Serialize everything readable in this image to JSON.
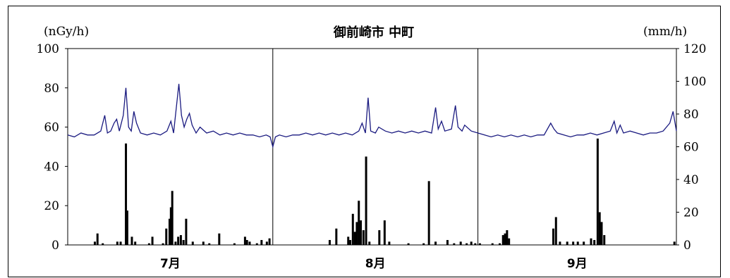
{
  "chart_data": {
    "type": "line+bar",
    "title": "御前崎市 中町",
    "left_axis": {
      "unit_label": "(nGy/h)",
      "ylim": [
        0,
        100
      ],
      "ticks": [
        "100",
        "80",
        "60",
        "40",
        "20",
        "0"
      ]
    },
    "right_axis": {
      "unit_label": "(mm/h)",
      "ylim": [
        0,
        120
      ],
      "ticks": [
        "120",
        "100",
        "80",
        "60",
        "40",
        "20",
        "0"
      ]
    },
    "x_categories": [
      "7月",
      "8月",
      "9月"
    ],
    "x_range_days": [
      0,
      92
    ],
    "month_boundaries_days": [
      31,
      62
    ],
    "series": [
      {
        "type": "line",
        "color": "#1a1a80",
        "axis": "left",
        "points": [
          [
            0,
            56
          ],
          [
            1,
            55
          ],
          [
            2,
            57
          ],
          [
            3,
            56
          ],
          [
            4,
            56
          ],
          [
            5,
            58
          ],
          [
            5.6,
            66
          ],
          [
            6,
            57
          ],
          [
            6.5,
            58
          ],
          [
            7,
            62
          ],
          [
            7.4,
            64
          ],
          [
            7.8,
            58
          ],
          [
            8.4,
            66
          ],
          [
            8.8,
            80
          ],
          [
            9.2,
            60
          ],
          [
            9.6,
            58
          ],
          [
            10,
            68
          ],
          [
            10.4,
            62
          ],
          [
            11,
            57
          ],
          [
            12,
            56
          ],
          [
            13,
            57
          ],
          [
            14,
            56
          ],
          [
            15,
            58
          ],
          [
            15.6,
            63
          ],
          [
            16,
            57
          ],
          [
            16.8,
            82
          ],
          [
            17.2,
            66
          ],
          [
            17.6,
            60
          ],
          [
            18,
            64
          ],
          [
            18.4,
            67
          ],
          [
            18.8,
            61
          ],
          [
            19.4,
            57
          ],
          [
            20,
            60
          ],
          [
            21,
            57
          ],
          [
            22,
            58
          ],
          [
            23,
            56
          ],
          [
            24,
            57
          ],
          [
            25,
            56
          ],
          [
            26,
            57
          ],
          [
            27,
            56
          ],
          [
            28,
            56
          ],
          [
            29,
            55
          ],
          [
            30,
            56
          ],
          [
            30.6,
            55
          ],
          [
            31,
            50
          ],
          [
            31.4,
            55
          ],
          [
            32,
            56
          ],
          [
            33,
            55
          ],
          [
            34,
            56
          ],
          [
            35,
            56
          ],
          [
            36,
            57
          ],
          [
            37,
            56
          ],
          [
            38,
            57
          ],
          [
            39,
            56
          ],
          [
            40,
            57
          ],
          [
            41,
            56
          ],
          [
            42,
            57
          ],
          [
            43,
            56
          ],
          [
            44,
            58
          ],
          [
            44.5,
            62
          ],
          [
            45,
            57
          ],
          [
            45.4,
            75
          ],
          [
            45.8,
            58
          ],
          [
            46.5,
            57
          ],
          [
            47,
            60
          ],
          [
            48,
            58
          ],
          [
            49,
            57
          ],
          [
            50,
            58
          ],
          [
            51,
            57
          ],
          [
            52,
            58
          ],
          [
            53,
            57
          ],
          [
            54,
            58
          ],
          [
            55,
            57
          ],
          [
            55.6,
            70
          ],
          [
            56,
            59
          ],
          [
            56.5,
            63
          ],
          [
            57,
            58
          ],
          [
            58,
            59
          ],
          [
            58.6,
            71
          ],
          [
            59,
            60
          ],
          [
            59.6,
            58
          ],
          [
            60,
            61
          ],
          [
            61,
            58
          ],
          [
            62,
            57
          ],
          [
            63,
            56
          ],
          [
            64,
            55
          ],
          [
            65,
            56
          ],
          [
            66,
            55
          ],
          [
            67,
            56
          ],
          [
            68,
            55
          ],
          [
            69,
            56
          ],
          [
            70,
            55
          ],
          [
            71,
            56
          ],
          [
            72,
            56
          ],
          [
            73,
            62
          ],
          [
            73.5,
            59
          ],
          [
            74,
            57
          ],
          [
            75,
            56
          ],
          [
            76,
            55
          ],
          [
            77,
            56
          ],
          [
            78,
            56
          ],
          [
            79,
            57
          ],
          [
            80,
            56
          ],
          [
            81,
            57
          ],
          [
            82,
            58
          ],
          [
            82.6,
            63
          ],
          [
            83,
            57
          ],
          [
            83.5,
            61
          ],
          [
            84,
            57
          ],
          [
            85,
            58
          ],
          [
            86,
            57
          ],
          [
            87,
            56
          ],
          [
            88,
            57
          ],
          [
            89,
            57
          ],
          [
            90,
            58
          ],
          [
            91,
            62
          ],
          [
            91.5,
            68
          ],
          [
            92,
            58
          ]
        ]
      },
      {
        "type": "bar",
        "color": "#000000",
        "axis": "right",
        "points": [
          [
            4.1,
            2
          ],
          [
            4.5,
            7
          ],
          [
            5.3,
            1
          ],
          [
            7.5,
            2
          ],
          [
            8.0,
            2
          ],
          [
            8.8,
            62
          ],
          [
            9.0,
            21
          ],
          [
            9.7,
            5
          ],
          [
            10.2,
            2
          ],
          [
            12.3,
            1
          ],
          [
            12.8,
            5
          ],
          [
            14.4,
            1
          ],
          [
            14.9,
            10
          ],
          [
            15.4,
            16
          ],
          [
            15.6,
            23
          ],
          [
            15.8,
            33
          ],
          [
            16.3,
            2
          ],
          [
            16.7,
            5
          ],
          [
            17.1,
            6
          ],
          [
            17.5,
            3
          ],
          [
            17.9,
            16
          ],
          [
            18.9,
            2
          ],
          [
            20.5,
            2
          ],
          [
            21.4,
            1
          ],
          [
            22.9,
            7
          ],
          [
            25.2,
            1
          ],
          [
            26.8,
            5
          ],
          [
            27.1,
            3
          ],
          [
            27.5,
            2
          ],
          [
            28.6,
            1
          ],
          [
            29.3,
            3
          ],
          [
            30.1,
            2
          ],
          [
            30.5,
            4
          ],
          [
            39.6,
            3
          ],
          [
            40.6,
            10
          ],
          [
            42.4,
            5
          ],
          [
            42.7,
            3
          ],
          [
            43.1,
            19
          ],
          [
            43.4,
            8
          ],
          [
            43.7,
            14
          ],
          [
            44.0,
            27
          ],
          [
            44.3,
            15
          ],
          [
            44.7,
            9
          ],
          [
            45.1,
            54
          ],
          [
            45.6,
            2
          ],
          [
            47.1,
            9
          ],
          [
            47.9,
            15
          ],
          [
            48.6,
            2
          ],
          [
            51.5,
            1
          ],
          [
            53.8,
            1
          ],
          [
            54.6,
            39
          ],
          [
            55.6,
            2
          ],
          [
            57.4,
            3
          ],
          [
            58.4,
            1
          ],
          [
            59.4,
            2
          ],
          [
            60.3,
            1
          ],
          [
            61.0,
            2
          ],
          [
            61.6,
            1
          ],
          [
            62.3,
            1
          ],
          [
            64.2,
            1
          ],
          [
            65.3,
            1
          ],
          [
            65.8,
            6
          ],
          [
            66.1,
            7
          ],
          [
            66.4,
            9
          ],
          [
            66.7,
            4
          ],
          [
            73.4,
            10
          ],
          [
            73.8,
            17
          ],
          [
            74.4,
            2
          ],
          [
            75.5,
            2
          ],
          [
            76.4,
            2
          ],
          [
            77.1,
            2
          ],
          [
            78.0,
            2
          ],
          [
            79.1,
            4
          ],
          [
            79.6,
            3
          ],
          [
            80.1,
            65
          ],
          [
            80.4,
            20
          ],
          [
            80.7,
            14
          ],
          [
            81.1,
            6
          ],
          [
            91.7,
            2
          ]
        ]
      }
    ]
  }
}
